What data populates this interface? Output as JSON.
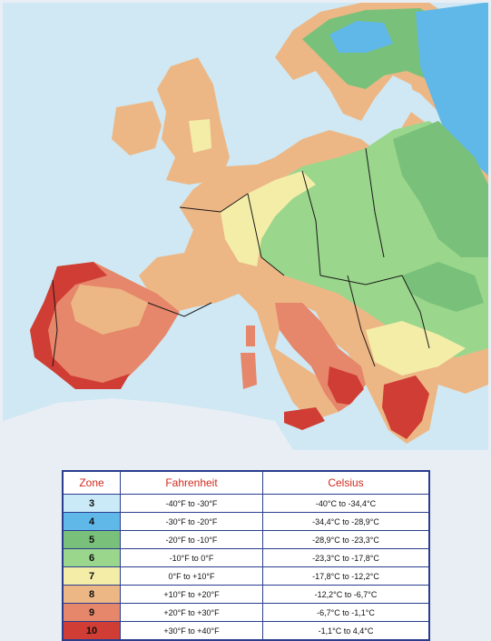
{
  "colors": {
    "sea": "#cfe8f3",
    "border": "#2a3d8f",
    "zone_3": "#c9eaf6",
    "zone_4": "#60b8e8",
    "zone_5": "#79c17a",
    "zone_6": "#9ad68c",
    "zone_7": "#f4eda8",
    "zone_8": "#edb785",
    "zone_9": "#e6866a",
    "zone_10": "#cf3d34"
  },
  "map": {
    "regions": [
      {
        "zone": 4,
        "name": "nordic-inland"
      },
      {
        "zone": 5,
        "name": "eastern-europe-cold"
      },
      {
        "zone": 6,
        "name": "central-europe"
      },
      {
        "zone": 7,
        "name": "plains-temperate"
      },
      {
        "zone": 8,
        "name": "atlantic-mild"
      },
      {
        "zone": 9,
        "name": "mediterranean-warm"
      },
      {
        "zone": 10,
        "name": "mediterranean-coast"
      }
    ]
  },
  "legend": {
    "headers": {
      "zone": "Zone",
      "fahrenheit": "Fahrenheit",
      "celsius": "Celsius"
    },
    "rows": [
      {
        "zone": "3",
        "fahrenheit": "-40°F to -30°F",
        "celsius": "-40°C to -34,4°C",
        "color_key": "zone_3"
      },
      {
        "zone": "4",
        "fahrenheit": "-30°F to -20°F",
        "celsius": "-34,4°C to -28,9°C",
        "color_key": "zone_4"
      },
      {
        "zone": "5",
        "fahrenheit": "-20°F to -10°F",
        "celsius": "-28,9°C to -23,3°C",
        "color_key": "zone_5"
      },
      {
        "zone": "6",
        "fahrenheit": "-10°F to 0°F",
        "celsius": "-23,3°C to -17,8°C",
        "color_key": "zone_6"
      },
      {
        "zone": "7",
        "fahrenheit": "0°F to +10°F",
        "celsius": "-17,8°C to -12,2°C",
        "color_key": "zone_7"
      },
      {
        "zone": "8",
        "fahrenheit": "+10°F to +20°F",
        "celsius": "-12,2°C to -6,7°C",
        "color_key": "zone_8"
      },
      {
        "zone": "9",
        "fahrenheit": "+20°F to +30°F",
        "celsius": "-6,7°C to -1,1°C",
        "color_key": "zone_9"
      },
      {
        "zone": "10",
        "fahrenheit": "+30°F to +40°F",
        "celsius": "-1,1°C to 4,4°C",
        "color_key": "zone_10"
      }
    ]
  }
}
